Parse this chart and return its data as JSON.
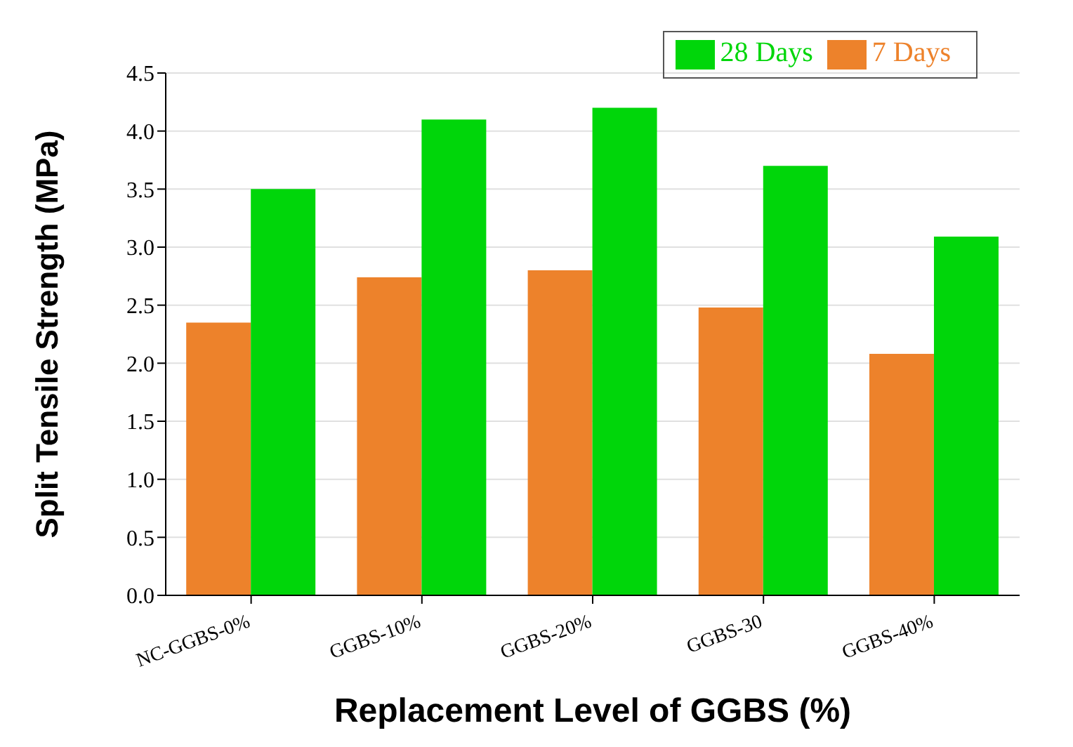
{
  "chart_data": {
    "type": "bar",
    "xlabel": "Replacement Level of GGBS (%)",
    "ylabel": "Split Tensile Strength (MPa)",
    "categories": [
      "NC-GGBS-0%",
      "GGBS-10%",
      "GGBS-20%",
      "GGBS-30",
      "GGBS-40%"
    ],
    "series": [
      {
        "name": "7 Days",
        "color": "#ed822b",
        "values": [
          2.35,
          2.74,
          2.8,
          2.48,
          2.08
        ]
      },
      {
        "name": "28 Days",
        "color": "#00d60a",
        "values": [
          3.5,
          4.1,
          4.2,
          3.7,
          3.09
        ]
      }
    ],
    "ylim": [
      0,
      4.5
    ],
    "yticks": [
      {
        "value": 0,
        "label": "0.0"
      },
      {
        "value": 0.5,
        "label": "0.5"
      },
      {
        "value": 1,
        "label": "1.0"
      },
      {
        "value": 1.5,
        "label": "1.5"
      },
      {
        "value": 2,
        "label": "2.0"
      },
      {
        "value": 2.5,
        "label": "2.5"
      },
      {
        "value": 3,
        "label": "3.0"
      },
      {
        "value": 3.5,
        "label": "3.5"
      },
      {
        "value": 4,
        "label": "4.0"
      },
      {
        "value": 4.5,
        "label": "4.5"
      }
    ],
    "grid": "y",
    "legend": "top right"
  }
}
